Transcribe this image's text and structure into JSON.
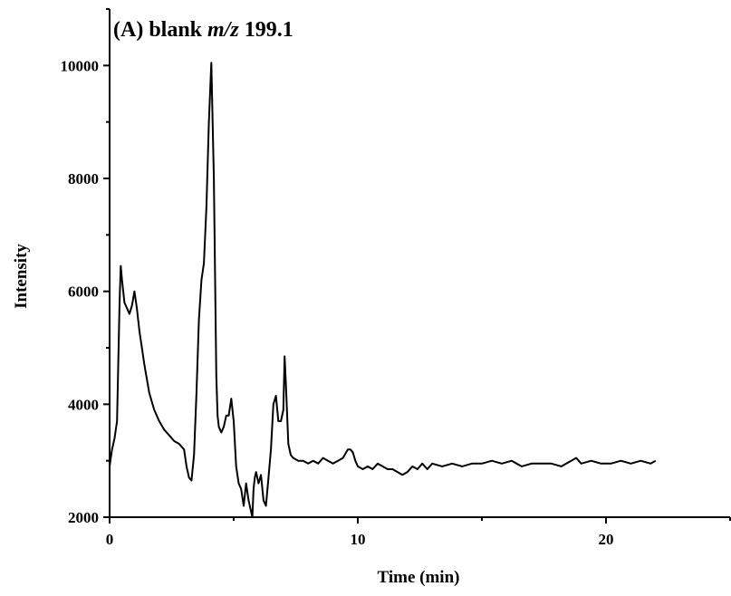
{
  "chart_data": {
    "type": "line",
    "title_parts": [
      "(A) blank ",
      "m/z",
      " 199.1"
    ],
    "xlabel": "Time (min)",
    "ylabel": "Intensity",
    "xlim": [
      0,
      25
    ],
    "ylim": [
      2000,
      11000
    ],
    "xticks": [
      0,
      10,
      20
    ],
    "yticks": [
      2000,
      4000,
      6000,
      8000,
      10000
    ],
    "grid": false,
    "series": [
      {
        "color": "#000000",
        "x": [
          0,
          0.1,
          0.2,
          0.3,
          0.4,
          0.45,
          0.5,
          0.6,
          0.7,
          0.8,
          0.9,
          1.0,
          1.1,
          1.2,
          1.4,
          1.6,
          1.8,
          2.0,
          2.2,
          2.4,
          2.6,
          2.8,
          3.0,
          3.1,
          3.2,
          3.3,
          3.4,
          3.5,
          3.6,
          3.7,
          3.8,
          3.9,
          4.0,
          4.1,
          4.2,
          4.3,
          4.35,
          4.4,
          4.5,
          4.6,
          4.7,
          4.8,
          4.9,
          5.0,
          5.1,
          5.2,
          5.3,
          5.4,
          5.5,
          5.6,
          5.7,
          5.75,
          5.8,
          5.85,
          5.9,
          6.0,
          6.1,
          6.2,
          6.3,
          6.4,
          6.5,
          6.6,
          6.7,
          6.8,
          6.9,
          7.0,
          7.05,
          7.1,
          7.2,
          7.3,
          7.4,
          7.6,
          7.8,
          8.0,
          8.2,
          8.4,
          8.6,
          8.8,
          9.0,
          9.2,
          9.4,
          9.6,
          9.7,
          9.8,
          9.9,
          10.0,
          10.2,
          10.4,
          10.6,
          10.8,
          11.0,
          11.2,
          11.4,
          11.6,
          11.8,
          12.0,
          12.2,
          12.4,
          12.6,
          12.8,
          13.0,
          13.4,
          13.8,
          14.2,
          14.6,
          15.0,
          15.4,
          15.8,
          16.2,
          16.6,
          17.0,
          17.4,
          17.8,
          18.2,
          18.6,
          18.8,
          19.0,
          19.4,
          19.8,
          20.2,
          20.6,
          21.0,
          21.4,
          21.8,
          22.0
        ],
        "y": [
          2900,
          3200,
          3400,
          3700,
          5800,
          6450,
          6200,
          5800,
          5700,
          5600,
          5750,
          6000,
          5700,
          5300,
          4700,
          4200,
          3900,
          3700,
          3550,
          3450,
          3350,
          3300,
          3200,
          2900,
          2700,
          2650,
          3100,
          4200,
          5500,
          6200,
          6500,
          7500,
          9000,
          10050,
          8000,
          4500,
          3800,
          3600,
          3500,
          3600,
          3800,
          3800,
          4100,
          3700,
          2900,
          2600,
          2500,
          2200,
          2600,
          2300,
          2100,
          2000,
          2500,
          2700,
          2800,
          2600,
          2750,
          2300,
          2200,
          2700,
          3200,
          4000,
          4150,
          3700,
          3700,
          3900,
          4850,
          4400,
          3300,
          3100,
          3050,
          3000,
          3000,
          2950,
          3000,
          2950,
          3050,
          3000,
          2950,
          3000,
          3050,
          3200,
          3200,
          3150,
          3000,
          2900,
          2850,
          2900,
          2850,
          2950,
          2900,
          2850,
          2850,
          2800,
          2750,
          2800,
          2900,
          2850,
          2950,
          2850,
          2950,
          2900,
          2950,
          2900,
          2950,
          2950,
          3000,
          2950,
          3000,
          2900,
          2950,
          2950,
          2950,
          2900,
          3000,
          3050,
          2950,
          3000,
          2950,
          2950,
          3000,
          2950,
          3000,
          2950,
          3000
        ]
      }
    ]
  }
}
